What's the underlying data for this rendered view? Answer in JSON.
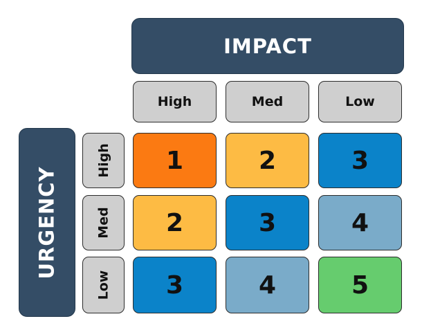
{
  "impact_label": "IMPACT",
  "urgency_label": "URGENCY",
  "impact_levels": [
    "High",
    "Med",
    "Low"
  ],
  "urgency_levels": [
    "High",
    "Med",
    "Low"
  ],
  "colors": {
    "priority_1": "#fb7a12",
    "priority_2": "#fdbb44",
    "priority_3": "#0b83c9",
    "priority_4": "#7aabc9",
    "priority_5": "#66cc6e",
    "header_dark": "#344d66",
    "header_light": "#cfcfcf"
  },
  "matrix": [
    [
      "1",
      "2",
      "3"
    ],
    [
      "2",
      "3",
      "4"
    ],
    [
      "3",
      "4",
      "5"
    ]
  ]
}
